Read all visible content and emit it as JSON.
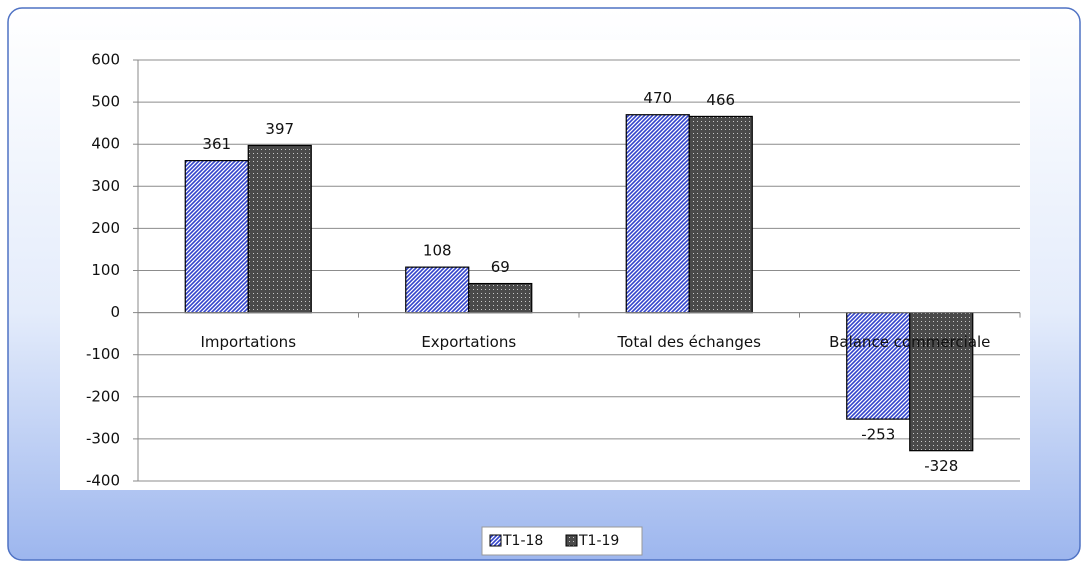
{
  "chart_data": {
    "type": "bar",
    "categories": [
      "Importations",
      "Exportations",
      "Total des échanges",
      "Balance commerciale"
    ],
    "series": [
      {
        "name": "T1-18",
        "color": "#3344cc",
        "values": [
          361,
          108,
          470,
          -253
        ]
      },
      {
        "name": "T1-19",
        "color": "#4a4a4a",
        "values": [
          397,
          69,
          466,
          -328
        ]
      }
    ],
    "ylim": [
      -400,
      600
    ],
    "yticks": [
      -400,
      -300,
      -200,
      -100,
      0,
      100,
      200,
      300,
      400,
      500,
      600
    ],
    "grid": true,
    "legend": "bottom"
  }
}
